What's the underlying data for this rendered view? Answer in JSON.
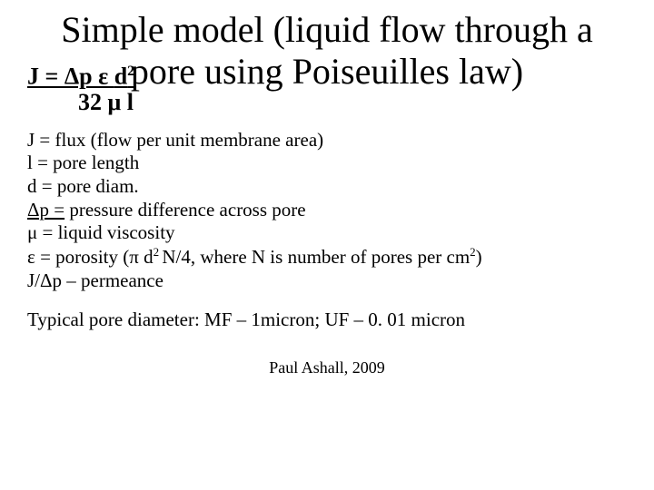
{
  "title": "Simple model (liquid flow through a pore using Poiseuilles law)",
  "formula": {
    "numerator_prefix": "J = Δp ε ",
    "numerator_var": "d",
    "numerator_exp": "2",
    "denominator": "32 μ l"
  },
  "defs": {
    "d1": "J = flux (flow per unit membrane area)",
    "d2": "l = pore length",
    "d3": "d = pore diam.",
    "d4a": "Δp =",
    "d4b": "pressure difference across pore",
    "d5": " μ = liquid viscosity",
    "d6a": "ε  = porosity (π d",
    "d6exp1": "2 ",
    "d6b": "N/4, where N is number of pores per cm",
    "d6exp2": "2",
    "d6c": ")",
    "d7": "J/Δp – permeance"
  },
  "typical": "Typical pore diameter: MF – 1micron; UF – 0. 01 micron",
  "footer": "Paul Ashall, 2009",
  "colors": {
    "bg": "#ffffff",
    "text": "#000000"
  },
  "fonts": {
    "title_size": 40,
    "body_size": 21,
    "formula_size": 26,
    "footer_size": 18
  }
}
